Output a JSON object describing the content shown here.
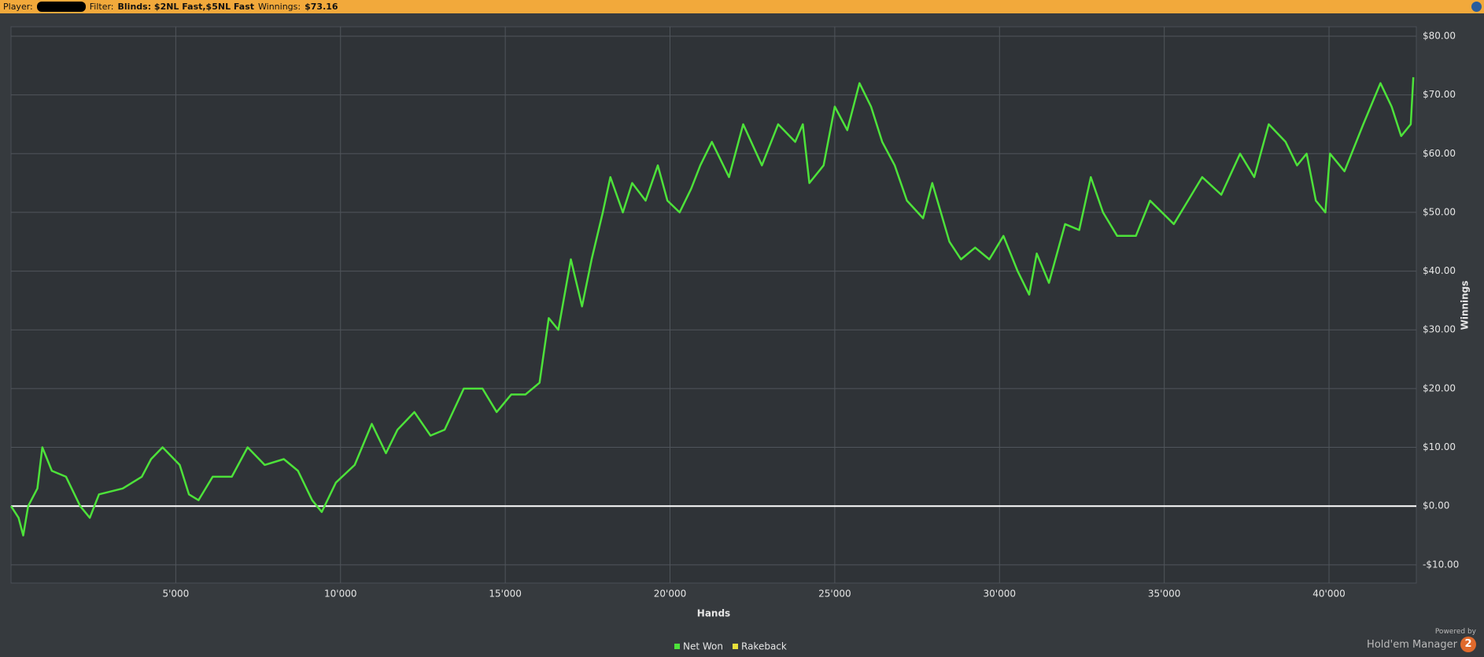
{
  "header": {
    "player_label": "Player:",
    "filter_label": "Filter:",
    "filter": "Blinds: $2NL Fast,$5NL Fast",
    "winnings_label": "Winnings:",
    "winnings": "$73.16"
  },
  "branding": {
    "powered_by": "Powered by",
    "product": "Hold'em Manager",
    "version": "2"
  },
  "chart_data": {
    "type": "line",
    "x_label": "Hands",
    "y_label": "Winnings",
    "x": [
      0,
      230,
      370,
      520,
      800,
      950,
      1240,
      1670,
      2100,
      2390,
      2670,
      3390,
      3970,
      4250,
      4600,
      5120,
      5400,
      5690,
      6120,
      6700,
      7180,
      7700,
      8280,
      8710,
      9140,
      9430,
      9860,
      10430,
      10950,
      11380,
      11730,
      12240,
      12730,
      13160,
      13740,
      14310,
      14740,
      15180,
      15610,
      16040,
      16320,
      16610,
      16990,
      17330,
      17620,
      17960,
      18190,
      18570,
      18850,
      19260,
      19630,
      19920,
      20290,
      20640,
      20920,
      21270,
      21790,
      22220,
      22790,
      23280,
      23800,
      24030,
      24230,
      24660,
      25000,
      25380,
      25750,
      26100,
      26440,
      26820,
      27190,
      27680,
      27960,
      28480,
      28830,
      29260,
      29690,
      30120,
      30550,
      30900,
      31130,
      31500,
      31990,
      32420,
      32770,
      33140,
      33570,
      34140,
      34570,
      35290,
      35720,
      36150,
      36730,
      37300,
      37730,
      38170,
      38680,
      39030,
      39320,
      39600,
      39890,
      40030,
      40470,
      41040,
      41560,
      41900,
      42190,
      42480,
      42560
    ],
    "series": [
      {
        "name": "Net Won",
        "color": "#4de23a",
        "values": [
          0,
          -2,
          -5,
          0,
          3,
          10,
          6,
          5,
          0,
          -2,
          2,
          3,
          5,
          8,
          10,
          7,
          2,
          1,
          5,
          5,
          10,
          7,
          8,
          6,
          1,
          -1,
          4,
          7,
          14,
          9,
          13,
          16,
          12,
          13,
          20,
          20,
          16,
          19,
          19,
          21,
          32,
          30,
          42,
          34,
          42,
          50,
          56,
          50,
          55,
          52,
          58,
          52,
          50,
          54,
          58,
          62,
          56,
          65,
          58,
          65,
          62,
          65,
          55,
          58,
          68,
          64,
          72,
          68,
          62,
          58,
          52,
          49,
          55,
          45,
          42,
          44,
          42,
          46,
          40,
          36,
          43,
          38,
          48,
          47,
          56,
          50,
          46,
          46,
          52,
          48,
          52,
          56,
          53,
          60,
          56,
          65,
          62,
          58,
          60,
          52,
          50,
          60,
          57,
          65,
          72,
          68,
          63,
          65,
          73
        ]
      },
      {
        "name": "Rakeback",
        "color": "#e8e03a"
      }
    ],
    "xlim": [
      0,
      42650
    ],
    "ylim": [
      -13.1,
      81.6
    ],
    "xticks": [
      {
        "value": 5000,
        "label": "5'000"
      },
      {
        "value": 10000,
        "label": "10'000"
      },
      {
        "value": 15000,
        "label": "15'000"
      },
      {
        "value": 20000,
        "label": "20'000"
      },
      {
        "value": 25000,
        "label": "25'000"
      },
      {
        "value": 30000,
        "label": "30'000"
      },
      {
        "value": 35000,
        "label": "35'000"
      },
      {
        "value": 40000,
        "label": "40'000"
      }
    ],
    "yticks": [
      {
        "value": -10,
        "label": "-$10.00"
      },
      {
        "value": 0,
        "label": "$0.00"
      },
      {
        "value": 10,
        "label": "$10.00"
      },
      {
        "value": 20,
        "label": "$20.00"
      },
      {
        "value": 30,
        "label": "$30.00"
      },
      {
        "value": 40,
        "label": "$40.00"
      },
      {
        "value": 50,
        "label": "$50.00"
      },
      {
        "value": 60,
        "label": "$60.00"
      },
      {
        "value": 70,
        "label": "$70.00"
      },
      {
        "value": 80,
        "label": "$80.00"
      }
    ],
    "grid": true,
    "zero_line": true,
    "legend": "bottom"
  }
}
